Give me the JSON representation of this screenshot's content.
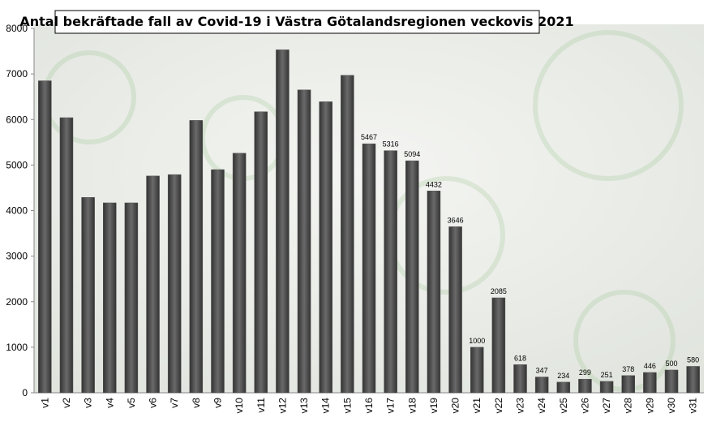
{
  "chart_data": {
    "type": "bar",
    "title": "Antal bekräftade fall av Covid-19 i Västra Götalandsregionen veckovis 2021",
    "categories": [
      "v1",
      "v2",
      "v3",
      "v4",
      "v5",
      "v6",
      "v7",
      "v8",
      "v9",
      "v10",
      "v11",
      "v12",
      "v13",
      "v14",
      "v15",
      "v16",
      "v17",
      "v18",
      "v19",
      "v20",
      "v21",
      "v22",
      "v23",
      "v24",
      "v25",
      "v26",
      "v27",
      "v28",
      "v29",
      "v30",
      "v31"
    ],
    "values": [
      6850,
      6040,
      4290,
      4170,
      4170,
      4760,
      4790,
      5980,
      4900,
      5260,
      6170,
      7530,
      6650,
      6390,
      6970,
      5467,
      5316,
      5094,
      4432,
      3646,
      1000,
      2085,
      618,
      347,
      234,
      299,
      251,
      378,
      446,
      500,
      580
    ],
    "value_labels": [
      null,
      null,
      null,
      null,
      null,
      null,
      null,
      null,
      null,
      null,
      null,
      null,
      null,
      null,
      null,
      "5467",
      "5316",
      "5094",
      "4432",
      "3646",
      "1000",
      "2085",
      "618",
      "347",
      "234",
      "299",
      "251",
      "378",
      "446",
      "500",
      "580"
    ],
    "color": "#555555",
    "ylim": [
      0,
      8000
    ],
    "yticks": [
      0,
      1000,
      2000,
      3000,
      4000,
      5000,
      6000,
      7000,
      8000
    ]
  }
}
